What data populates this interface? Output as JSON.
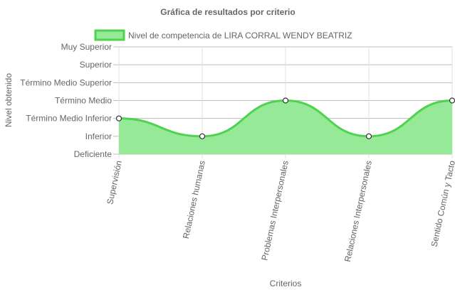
{
  "chart_data": {
    "type": "area",
    "title": "Gráfica de resultados por criterio",
    "xlabel": "Criterios",
    "ylabel": "Nivel obtenido",
    "y_levels": [
      "Deficiente",
      "Inferior",
      "Término Medio Inferior",
      "Término Medio",
      "Término Medio Superior",
      "Superior",
      "Muy Superior"
    ],
    "categories": [
      "Supervisión",
      "Relaciones humanas",
      "Problemas Interpersonales",
      "Relaciones Interpersonales",
      "Sentido Común y Tacto"
    ],
    "series": [
      {
        "name": "Nivel de competencia de LIRA CORRAL WENDY BEATRIZ",
        "values": [
          2,
          1,
          3,
          1,
          3
        ],
        "color": "#4fd24f",
        "fill": "#96e996"
      }
    ],
    "ylim": [
      0,
      6
    ],
    "legend_position": "top",
    "grid": true
  }
}
